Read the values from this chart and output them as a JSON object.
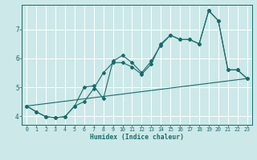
{
  "xlabel": "Humidex (Indice chaleur)",
  "bg_color": "#cce8e8",
  "grid_color": "#ffffff",
  "line_color": "#1a6b6b",
  "xlim": [
    -0.5,
    23.5
  ],
  "ylim": [
    3.7,
    7.85
  ],
  "xticks": [
    0,
    1,
    2,
    3,
    4,
    5,
    6,
    7,
    8,
    9,
    10,
    11,
    12,
    13,
    14,
    15,
    16,
    17,
    18,
    19,
    20,
    21,
    22,
    23
  ],
  "yticks": [
    4,
    5,
    6,
    7
  ],
  "line1_x": [
    0,
    1,
    2,
    3,
    4,
    5,
    6,
    7,
    8,
    9,
    10,
    11,
    12,
    13,
    14,
    15,
    16,
    17,
    18,
    19,
    20,
    21,
    22,
    23
  ],
  "line1_y": [
    4.35,
    4.15,
    3.98,
    3.95,
    3.98,
    4.35,
    5.0,
    5.05,
    4.6,
    5.9,
    6.1,
    5.85,
    5.5,
    5.9,
    6.45,
    6.8,
    6.65,
    6.65,
    6.5,
    7.65,
    7.3,
    5.6,
    5.6,
    5.3
  ],
  "line2_x": [
    0,
    1,
    2,
    3,
    4,
    5,
    6,
    7,
    8,
    9,
    10,
    11,
    12,
    13,
    14,
    15,
    16,
    17,
    18,
    19,
    20,
    21,
    22,
    23
  ],
  "line2_y": [
    4.35,
    4.15,
    3.98,
    3.95,
    3.98,
    4.35,
    4.5,
    4.95,
    5.5,
    5.85,
    5.85,
    5.7,
    5.45,
    5.8,
    6.5,
    6.8,
    6.65,
    6.65,
    6.5,
    7.65,
    7.3,
    5.6,
    5.6,
    5.3
  ],
  "line3_x": [
    0,
    23
  ],
  "line3_y": [
    4.35,
    5.3
  ]
}
